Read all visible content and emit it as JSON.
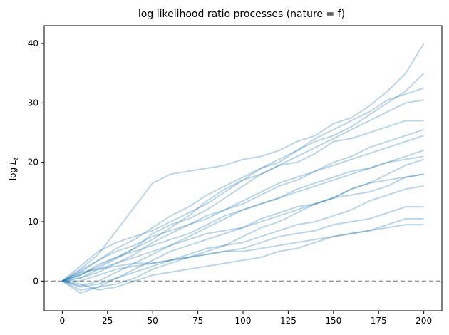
{
  "chart_data": {
    "type": "line",
    "title": "log likelihood ratio processes (nature = f)",
    "xlabel": "",
    "ylabel": "log L_t",
    "ylabel_main": "log ",
    "ylabel_var": "L",
    "ylabel_sub": "t",
    "xlim": [
      -10,
      210
    ],
    "ylim": [
      -5,
      43
    ],
    "x_ticks": [
      0,
      25,
      50,
      75,
      100,
      125,
      150,
      175,
      200
    ],
    "y_ticks": [
      0,
      10,
      20,
      30,
      40
    ],
    "x_tick_labels": [
      "0",
      "25",
      "50",
      "75",
      "100",
      "125",
      "150",
      "175",
      "200"
    ],
    "y_tick_labels": [
      "0",
      "10",
      "20",
      "30",
      "40"
    ],
    "grid": false,
    "legend": "none",
    "line_color": "#1f77b4",
    "line_alpha": 0.3,
    "reference_line": {
      "y": 0,
      "style": "dashed",
      "color": "#999999"
    },
    "x": [
      0,
      10,
      20,
      30,
      40,
      50,
      60,
      70,
      80,
      90,
      100,
      110,
      120,
      130,
      140,
      150,
      160,
      170,
      180,
      190,
      200
    ],
    "series": [
      {
        "values": [
          0,
          2.0,
          4.5,
          8.5,
          12.5,
          16.5,
          18.0,
          18.5,
          19.0,
          19.5,
          20.5,
          21.0,
          22.0,
          23.5,
          24.5,
          26.5,
          27.5,
          29.5,
          32.0,
          35.0,
          40.0
        ]
      },
      {
        "values": [
          0,
          1.5,
          3.5,
          5.5,
          7.0,
          9.0,
          11.0,
          12.5,
          14.5,
          16.0,
          17.5,
          19.0,
          20.0,
          22.0,
          23.5,
          24.5,
          26.0,
          28.0,
          30.0,
          32.0,
          35.0
        ]
      },
      {
        "values": [
          0,
          2.5,
          5.0,
          6.5,
          7.5,
          8.5,
          10.0,
          11.5,
          13.0,
          15.0,
          17.0,
          19.0,
          20.5,
          22.0,
          24.0,
          25.5,
          27.0,
          28.5,
          30.5,
          31.5,
          32.5
        ]
      },
      {
        "values": [
          0,
          1.0,
          2.5,
          4.0,
          5.5,
          7.0,
          9.0,
          11.0,
          13.5,
          15.5,
          17.0,
          18.0,
          19.5,
          21.0,
          22.5,
          24.0,
          25.5,
          27.0,
          28.5,
          30.0,
          30.5
        ]
      },
      {
        "values": [
          0,
          1.2,
          2.2,
          3.8,
          5.5,
          8.0,
          9.5,
          10.5,
          12.0,
          14.0,
          16.0,
          18.0,
          19.5,
          20.0,
          21.5,
          23.5,
          24.0,
          25.0,
          26.0,
          27.0,
          27.0
        ]
      },
      {
        "values": [
          0,
          0.5,
          1.5,
          3.0,
          4.5,
          6.5,
          8.0,
          9.5,
          11.0,
          12.0,
          13.0,
          14.5,
          16.0,
          17.0,
          18.5,
          20.0,
          21.0,
          22.5,
          23.5,
          24.5,
          25.5
        ]
      },
      {
        "values": [
          0,
          1.8,
          3.5,
          5.0,
          6.0,
          7.5,
          8.5,
          9.5,
          10.5,
          12.0,
          13.5,
          15.0,
          16.5,
          17.5,
          18.5,
          19.5,
          20.5,
          21.5,
          22.5,
          23.5,
          24.5
        ]
      },
      {
        "values": [
          0,
          -0.8,
          0.0,
          1.5,
          3.0,
          4.5,
          6.0,
          7.5,
          9.0,
          10.5,
          12.0,
          13.0,
          14.0,
          15.0,
          16.0,
          17.0,
          18.0,
          19.0,
          20.0,
          21.0,
          22.0
        ]
      },
      {
        "values": [
          0,
          1.0,
          2.8,
          4.0,
          5.0,
          6.0,
          7.0,
          8.0,
          9.5,
          11.0,
          12.0,
          13.0,
          14.0,
          15.5,
          16.5,
          17.5,
          18.5,
          19.0,
          20.0,
          20.5,
          21.0
        ]
      },
      {
        "values": [
          0,
          -1.5,
          -1.0,
          0.5,
          2.0,
          3.5,
          5.0,
          6.0,
          7.0,
          8.0,
          9.0,
          10.5,
          11.5,
          12.5,
          13.0,
          14.0,
          14.5,
          15.0,
          16.0,
          17.5,
          18.0
        ]
      },
      {
        "values": [
          0,
          0.5,
          2.0,
          3.0,
          4.0,
          5.0,
          6.0,
          7.0,
          8.0,
          8.5,
          9.0,
          10.0,
          11.0,
          12.0,
          13.0,
          14.0,
          15.5,
          16.5,
          17.0,
          17.5,
          18.0
        ]
      },
      {
        "values": [
          0,
          -1.0,
          -0.5,
          0.5,
          1.5,
          2.5,
          3.5,
          4.5,
          5.5,
          6.0,
          6.5,
          7.5,
          8.5,
          9.5,
          10.0,
          11.0,
          12.0,
          13.5,
          14.5,
          15.5,
          16.0
        ]
      },
      {
        "values": [
          0,
          0.0,
          1.0,
          2.0,
          2.5,
          3.0,
          3.5,
          4.0,
          4.5,
          5.0,
          5.5,
          6.5,
          7.5,
          8.0,
          8.5,
          9.5,
          10.0,
          10.5,
          11.5,
          12.5,
          12.5
        ]
      },
      {
        "values": [
          0,
          -0.5,
          -1.5,
          -1.0,
          0.0,
          1.0,
          1.5,
          2.0,
          2.5,
          3.0,
          3.5,
          4.0,
          5.0,
          5.5,
          6.5,
          7.5,
          8.0,
          8.5,
          9.5,
          10.5,
          10.5
        ]
      },
      {
        "values": [
          0,
          1.5,
          2.0,
          2.5,
          3.0,
          3.0,
          3.5,
          4.0,
          4.5,
          5.0,
          5.0,
          5.5,
          6.0,
          6.5,
          7.0,
          7.5,
          8.0,
          8.5,
          9.0,
          9.5,
          9.5
        ]
      },
      {
        "values": [
          0,
          -2.0,
          -1.0,
          -0.5,
          0.5,
          2.0,
          3.0,
          4.0,
          5.0,
          6.0,
          7.5,
          9.0,
          10.0,
          11.5,
          13.0,
          14.0,
          15.5,
          16.5,
          18.0,
          19.5,
          20.5
        ]
      }
    ]
  }
}
